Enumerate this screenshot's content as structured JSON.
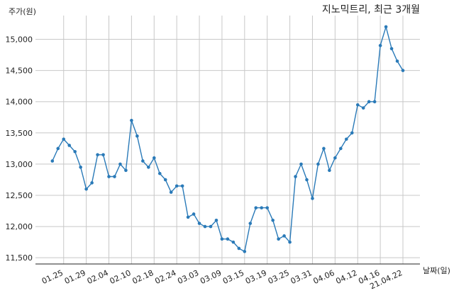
{
  "chart_data": {
    "type": "line",
    "title": "지노믹트리, 최근 3개월",
    "ylabel": "주가(원)",
    "xlabel": "날짜(일)",
    "ylim": [
      11400,
      15380
    ],
    "grid": true,
    "line_color": "#2a7ab8",
    "yticks": [
      11500,
      12000,
      12500,
      13000,
      13500,
      14000,
      14500,
      15000
    ],
    "ytick_labels": [
      "11,500",
      "12,000",
      "12,500",
      "13,000",
      "13,500",
      "14,000",
      "14,500",
      "15,000"
    ],
    "xticks": [
      {
        "label": "01.25",
        "index": 2
      },
      {
        "label": "01.29",
        "index": 6
      },
      {
        "label": "02.04",
        "index": 10
      },
      {
        "label": "02.10",
        "index": 14
      },
      {
        "label": "02.18",
        "index": 18
      },
      {
        "label": "02.24",
        "index": 22
      },
      {
        "label": "03.03",
        "index": 26
      },
      {
        "label": "03.09",
        "index": 30
      },
      {
        "label": "03.15",
        "index": 34
      },
      {
        "label": "03.19",
        "index": 38
      },
      {
        "label": "03.25",
        "index": 42
      },
      {
        "label": "03.31",
        "index": 46
      },
      {
        "label": "04.06",
        "index": 50
      },
      {
        "label": "04.12",
        "index": 54
      },
      {
        "label": "04.16",
        "index": 58
      },
      {
        "label": "21.04.22",
        "index": 62
      }
    ],
    "values": [
      13050,
      13250,
      13400,
      13300,
      13200,
      12950,
      12600,
      12700,
      13150,
      13150,
      12800,
      12800,
      13000,
      12900,
      13700,
      13450,
      13050,
      12950,
      13100,
      12850,
      12750,
      12550,
      12650,
      12650,
      12150,
      12200,
      12050,
      12000,
      12000,
      12100,
      11800,
      11800,
      11750,
      11650,
      11600,
      12050,
      12300,
      12300,
      12300,
      12100,
      11800,
      11850,
      11750,
      12800,
      13000,
      12750,
      12450,
      13000,
      13250,
      12900,
      13100,
      13250,
      13400,
      13500,
      13950,
      13900,
      14000,
      14000,
      14900,
      15200,
      14850,
      14650,
      14500
    ]
  }
}
